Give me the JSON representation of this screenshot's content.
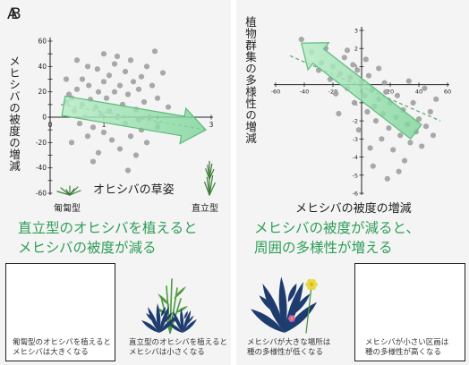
{
  "panels": {
    "a": {
      "label": "A",
      "ylabel": "メヒシバの被度の増減",
      "xlabel": "オヒシバの草姿",
      "x_tick_left": "匍匐型",
      "x_tick_right": "直立型",
      "headline_line1": "直立型のオヒシバを植えると",
      "headline_line2": "メヒシバの被度が減る",
      "caption1_line1": "匍匐型のオヒシバを植えると",
      "caption1_line2": "メヒシバは大きくなる",
      "caption2_line1": "直立型のオヒシバを植えると",
      "caption2_line2": "メヒシバは小さくなる"
    },
    "b": {
      "label": "B",
      "ylabel": "植物群集の多様性の増減",
      "xlabel": "メヒシバの被度の増減",
      "headline_line1": "メヒシバの被度が減ると、",
      "headline_line2": "周囲の多様性が増える",
      "caption1_line1": "メヒシバが大きな場所は",
      "caption1_line2": "種の多様性が低くなる",
      "caption2_line1": "メヒシバが小さい区画は",
      "caption2_line2": "種の多様性が高くなる"
    }
  },
  "colors": {
    "points": "#9a9a9a",
    "arrow_fill": "#8fdca8",
    "arrow_stroke": "#5dbb7c",
    "trend": "#6aa87e",
    "headline": "#2e9e57"
  },
  "chart_data": [
    {
      "type": "scatter",
      "xlim": [
        0,
        3
      ],
      "ylim": [
        -60,
        60
      ],
      "x_ticks": [
        0,
        1,
        2,
        3
      ],
      "y_ticks": [
        -60,
        -50,
        -40,
        -30,
        -20,
        -10,
        0,
        10,
        20,
        30,
        40,
        50,
        60
      ],
      "y_tick_labels": [
        "-60",
        "",
        "-40",
        "",
        "-20",
        "",
        "0",
        "",
        "20",
        "",
        "40",
        "",
        "60"
      ],
      "trend": {
        "x": [
          0.2,
          2.9
        ],
        "y": [
          10,
          -10
        ]
      },
      "points": [
        {
          "x": 0.3,
          "y": 12
        },
        {
          "x": 0.35,
          "y": 18
        },
        {
          "x": 0.4,
          "y": 15
        },
        {
          "x": 0.45,
          "y": 5
        },
        {
          "x": 0.5,
          "y": 22
        },
        {
          "x": 0.55,
          "y": -5
        },
        {
          "x": 0.6,
          "y": 30
        },
        {
          "x": 0.6,
          "y": 10
        },
        {
          "x": 0.65,
          "y": 0
        },
        {
          "x": 0.7,
          "y": 40
        },
        {
          "x": 0.72,
          "y": 25
        },
        {
          "x": 0.75,
          "y": 14
        },
        {
          "x": 0.8,
          "y": -8
        },
        {
          "x": 0.85,
          "y": 8
        },
        {
          "x": 0.88,
          "y": 38
        },
        {
          "x": 0.9,
          "y": 20
        },
        {
          "x": 0.95,
          "y": 2
        },
        {
          "x": 1.0,
          "y": 28
        },
        {
          "x": 1.0,
          "y": -12
        },
        {
          "x": 1.05,
          "y": 15
        },
        {
          "x": 1.1,
          "y": 33
        },
        {
          "x": 1.1,
          "y": 5
        },
        {
          "x": 1.15,
          "y": -18
        },
        {
          "x": 1.2,
          "y": 42
        },
        {
          "x": 1.2,
          "y": 20
        },
        {
          "x": 1.25,
          "y": 0
        },
        {
          "x": 1.3,
          "y": 25
        },
        {
          "x": 1.3,
          "y": -25
        },
        {
          "x": 1.35,
          "y": 10
        },
        {
          "x": 1.4,
          "y": 36
        },
        {
          "x": 1.4,
          "y": -5
        },
        {
          "x": 1.45,
          "y": 18
        },
        {
          "x": 1.5,
          "y": 45
        },
        {
          "x": 1.5,
          "y": -15
        },
        {
          "x": 1.55,
          "y": 28
        },
        {
          "x": 1.6,
          "y": 6
        },
        {
          "x": 1.6,
          "y": -30
        },
        {
          "x": 1.65,
          "y": 22
        },
        {
          "x": 1.7,
          "y": 32
        },
        {
          "x": 1.7,
          "y": -10
        },
        {
          "x": 1.75,
          "y": 12
        },
        {
          "x": 1.8,
          "y": 40
        },
        {
          "x": 1.8,
          "y": -20
        },
        {
          "x": 1.85,
          "y": 0
        },
        {
          "x": 1.9,
          "y": 25
        },
        {
          "x": 1.95,
          "y": 52
        },
        {
          "x": 2.0,
          "y": 15
        },
        {
          "x": 2.0,
          "y": -8
        },
        {
          "x": 2.1,
          "y": 35
        },
        {
          "x": 2.2,
          "y": 8
        },
        {
          "x": 0.4,
          "y": -20
        },
        {
          "x": 0.8,
          "y": -35
        },
        {
          "x": 1.0,
          "y": 50
        },
        {
          "x": 0.5,
          "y": 45
        },
        {
          "x": 1.45,
          "y": -42
        },
        {
          "x": 0.9,
          "y": -28
        },
        {
          "x": 1.25,
          "y": 48
        },
        {
          "x": 0.3,
          "y": 30
        },
        {
          "x": 1.65,
          "y": -2
        },
        {
          "x": 0.7,
          "y": -15
        }
      ]
    },
    {
      "type": "scatter",
      "xlim": [
        -60,
        60
      ],
      "ylim": [
        -6,
        3
      ],
      "x_ticks": [
        -60,
        -40,
        -20,
        0,
        20,
        40,
        60
      ],
      "x_tick_labels": [
        "-60",
        "-40",
        "-20",
        "0",
        "20",
        "40",
        "60"
      ],
      "y_ticks": [
        -6,
        -5,
        -4,
        -3,
        -2,
        -1,
        0,
        1,
        2,
        3
      ],
      "y_tick_labels": [
        "-6",
        "-5",
        "-4",
        "-3",
        "-2",
        "-1",
        "",
        "1",
        "2",
        "3"
      ],
      "trend": {
        "x": [
          -50,
          55
        ],
        "y": [
          1.6,
          -2.0
        ]
      },
      "points": [
        {
          "x": -42,
          "y": 2.5
        },
        {
          "x": -35,
          "y": 1.8
        },
        {
          "x": -30,
          "y": 0.8
        },
        {
          "x": -28,
          "y": 1.2
        },
        {
          "x": -25,
          "y": 2.0
        },
        {
          "x": -22,
          "y": 0.3
        },
        {
          "x": -20,
          "y": 1.0
        },
        {
          "x": -18,
          "y": -0.5
        },
        {
          "x": -15,
          "y": 0.6
        },
        {
          "x": -12,
          "y": 1.5
        },
        {
          "x": -10,
          "y": -0.2
        },
        {
          "x": -8,
          "y": 0.4
        },
        {
          "x": -5,
          "y": -1.0
        },
        {
          "x": -3,
          "y": 0.8
        },
        {
          "x": 0,
          "y": 0.2
        },
        {
          "x": 2,
          "y": -0.6
        },
        {
          "x": 4,
          "y": -1.5
        },
        {
          "x": 5,
          "y": 0.5
        },
        {
          "x": 7,
          "y": -0.3
        },
        {
          "x": 9,
          "y": -1.2
        },
        {
          "x": 10,
          "y": -2.0
        },
        {
          "x": 12,
          "y": -0.8
        },
        {
          "x": 14,
          "y": -3.0
        },
        {
          "x": 15,
          "y": -1.6
        },
        {
          "x": 17,
          "y": -0.4
        },
        {
          "x": 19,
          "y": -2.4
        },
        {
          "x": 20,
          "y": -1.0
        },
        {
          "x": 22,
          "y": -3.6
        },
        {
          "x": 24,
          "y": -1.8
        },
        {
          "x": 25,
          "y": -0.6
        },
        {
          "x": 27,
          "y": -2.8
        },
        {
          "x": 29,
          "y": -1.4
        },
        {
          "x": 30,
          "y": -4.2
        },
        {
          "x": 32,
          "y": -2.2
        },
        {
          "x": 34,
          "y": -3.2
        },
        {
          "x": 36,
          "y": -1.0
        },
        {
          "x": 38,
          "y": -2.6
        },
        {
          "x": 40,
          "y": -1.9
        },
        {
          "x": 42,
          "y": -3.4
        },
        {
          "x": 45,
          "y": -2.3
        },
        {
          "x": 48,
          "y": -1.5
        },
        {
          "x": 50,
          "y": -2.8
        },
        {
          "x": 52,
          "y": -0.8
        },
        {
          "x": -2,
          "y": -2.5
        },
        {
          "x": 8,
          "y": -4.5
        },
        {
          "x": 18,
          "y": -5.2
        },
        {
          "x": -10,
          "y": 1.9
        },
        {
          "x": 3,
          "y": 1.4
        },
        {
          "x": 26,
          "y": -4.8
        },
        {
          "x": 33,
          "y": 0.2
        },
        {
          "x": -16,
          "y": -1.6
        },
        {
          "x": 12,
          "y": 0.9
        },
        {
          "x": 44,
          "y": -0.2
        },
        {
          "x": 6,
          "y": -3.5
        },
        {
          "x": 16,
          "y": 0.1
        },
        {
          "x": -6,
          "y": 1.1
        }
      ]
    }
  ]
}
